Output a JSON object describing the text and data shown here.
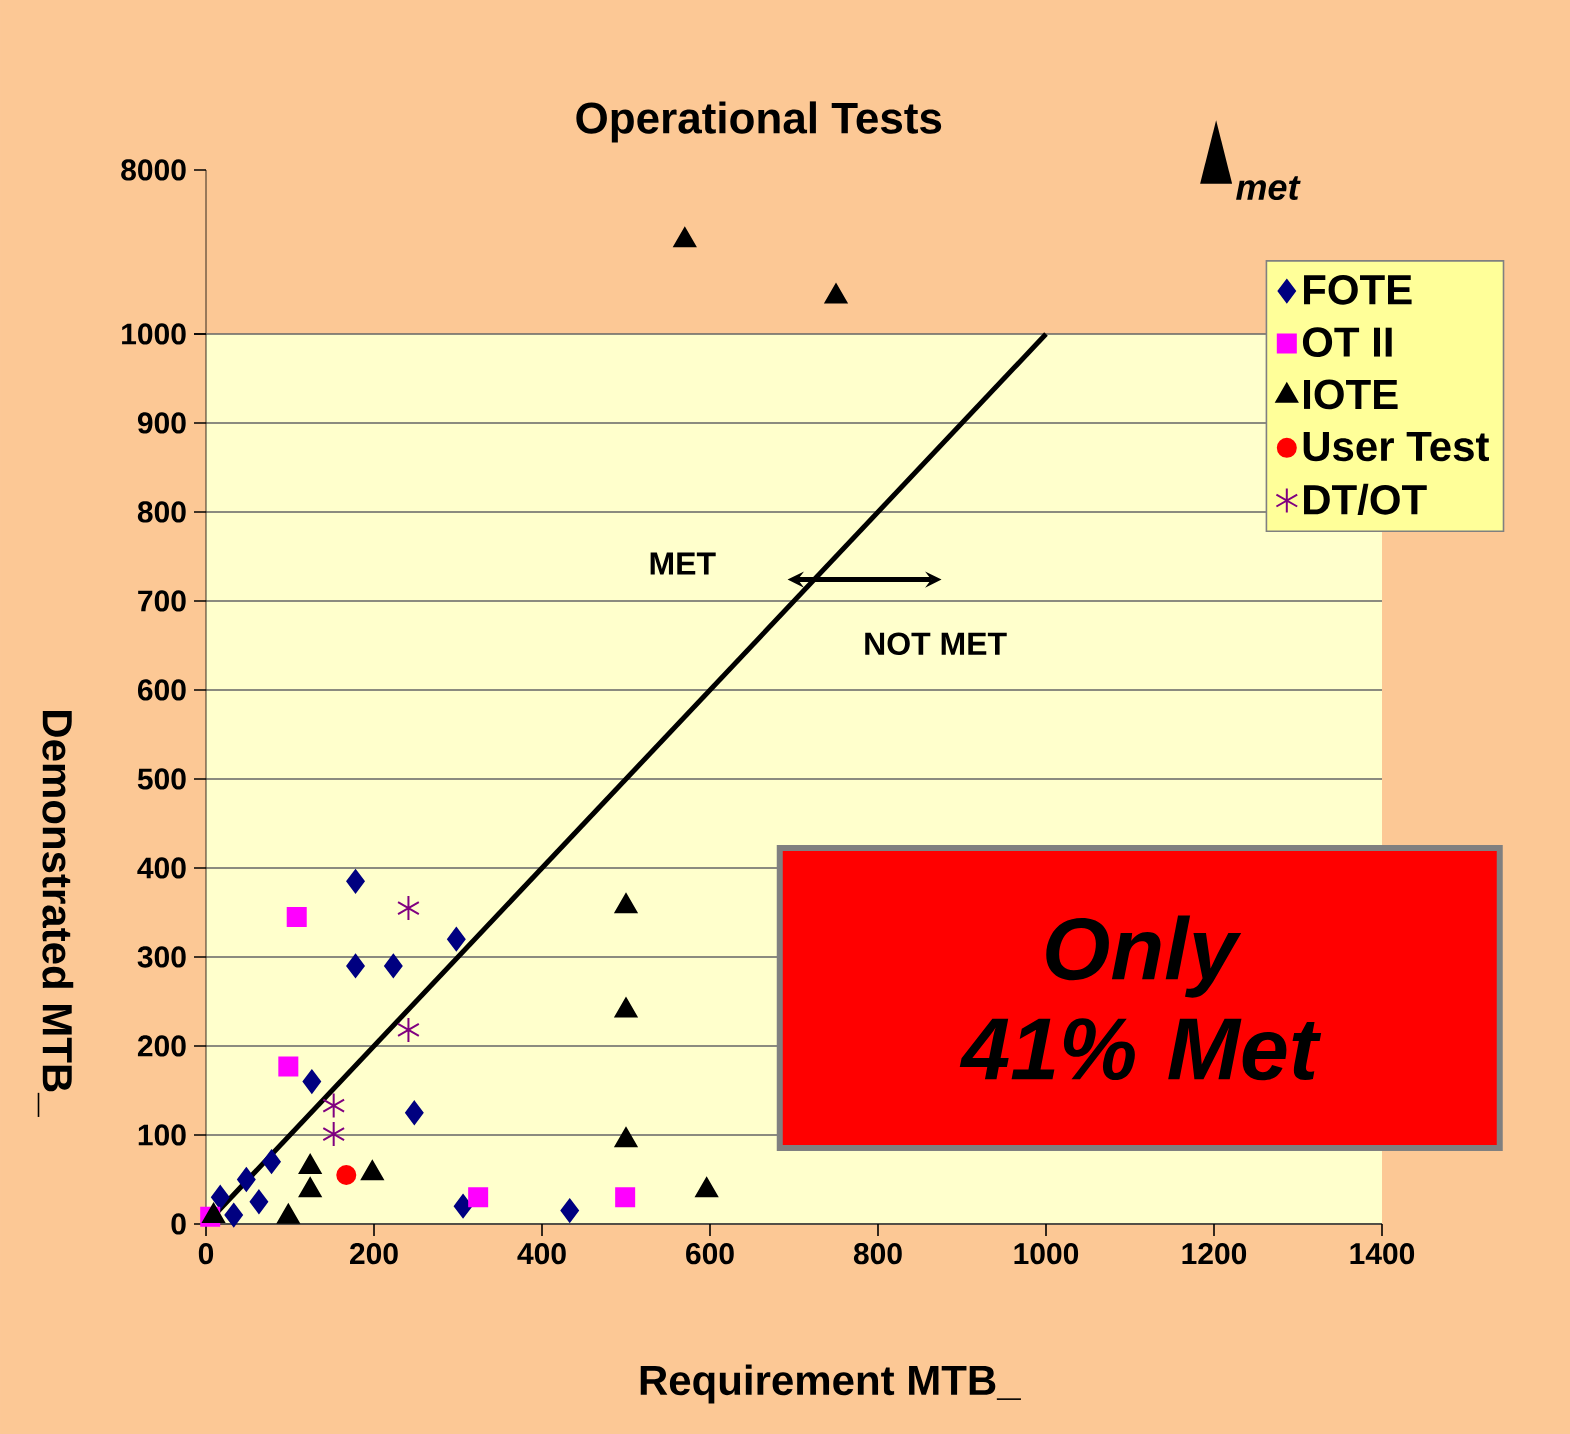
{
  "chart_data": [
    {
      "type": "scatter",
      "title": "Operational Tests",
      "xlim": [
        0,
        1400
      ],
      "ylim": [
        1000,
        8000
      ],
      "yticks": [
        1000,
        8000
      ],
      "tick_labels": "y",
      "annotations": [
        "met"
      ],
      "series": [
        {
          "color": "#000000",
          "marker": "triangle",
          "x": [
            570,
            750
          ],
          "values": [
            5000,
            2600
          ]
        }
      ]
    },
    {
      "type": "scatter",
      "xlabel": "Requirement MTB_",
      "ylabel": "Demonstrated MTB_",
      "xlim": [
        0,
        1400
      ],
      "xticks": [
        0,
        200,
        400,
        600,
        800,
        1000,
        1200,
        1400
      ],
      "ylim": [
        0,
        1000
      ],
      "yticks": [
        0,
        100,
        200,
        300,
        400,
        500,
        600,
        700,
        800,
        900,
        {
          "value": 1000,
          "label": null
        }
      ],
      "grid": "y",
      "legend": "top right",
      "annotations": [
        "MET",
        "NOT MET",
        "Only 41% Met"
      ],
      "series": [
        {
          "name": "FOTE",
          "color": "#000080",
          "marker": "diamond",
          "x": [
            178,
            178,
            223,
            298,
            126,
            248,
            78,
            48,
            63,
            33,
            17,
            306,
            433
          ],
          "values": [
            385,
            290,
            290,
            320,
            160,
            125,
            70,
            50,
            25,
            10,
            30,
            20,
            15
          ]
        },
        {
          "name": "OT II",
          "color": "#ff00ff",
          "marker": "square",
          "x": [
            108,
            98,
            324,
            499,
            5
          ],
          "values": [
            345,
            177,
            30,
            30,
            8
          ]
        },
        {
          "name": "IOTE",
          "color": "#000000",
          "marker": "triangle",
          "x": [
            500,
            500,
            500,
            596,
            124,
            124,
            198,
            98,
            9
          ],
          "values": [
            357,
            240,
            94,
            38,
            64,
            38,
            57,
            8,
            9
          ]
        },
        {
          "name": "User Test",
          "color": "#ff0000",
          "marker": "circle",
          "x": [
            167
          ],
          "values": [
            55
          ]
        },
        {
          "name": "DT/OT",
          "color": "#800080",
          "marker": "cross",
          "x": [
            241,
            241,
            152,
            152
          ],
          "values": [
            355,
            218,
            133,
            101
          ]
        },
        {
          "type": "line",
          "color": "#000000",
          "x": [
            0,
            1000
          ],
          "values": [
            0,
            1000
          ]
        }
      ]
    }
  ]
}
